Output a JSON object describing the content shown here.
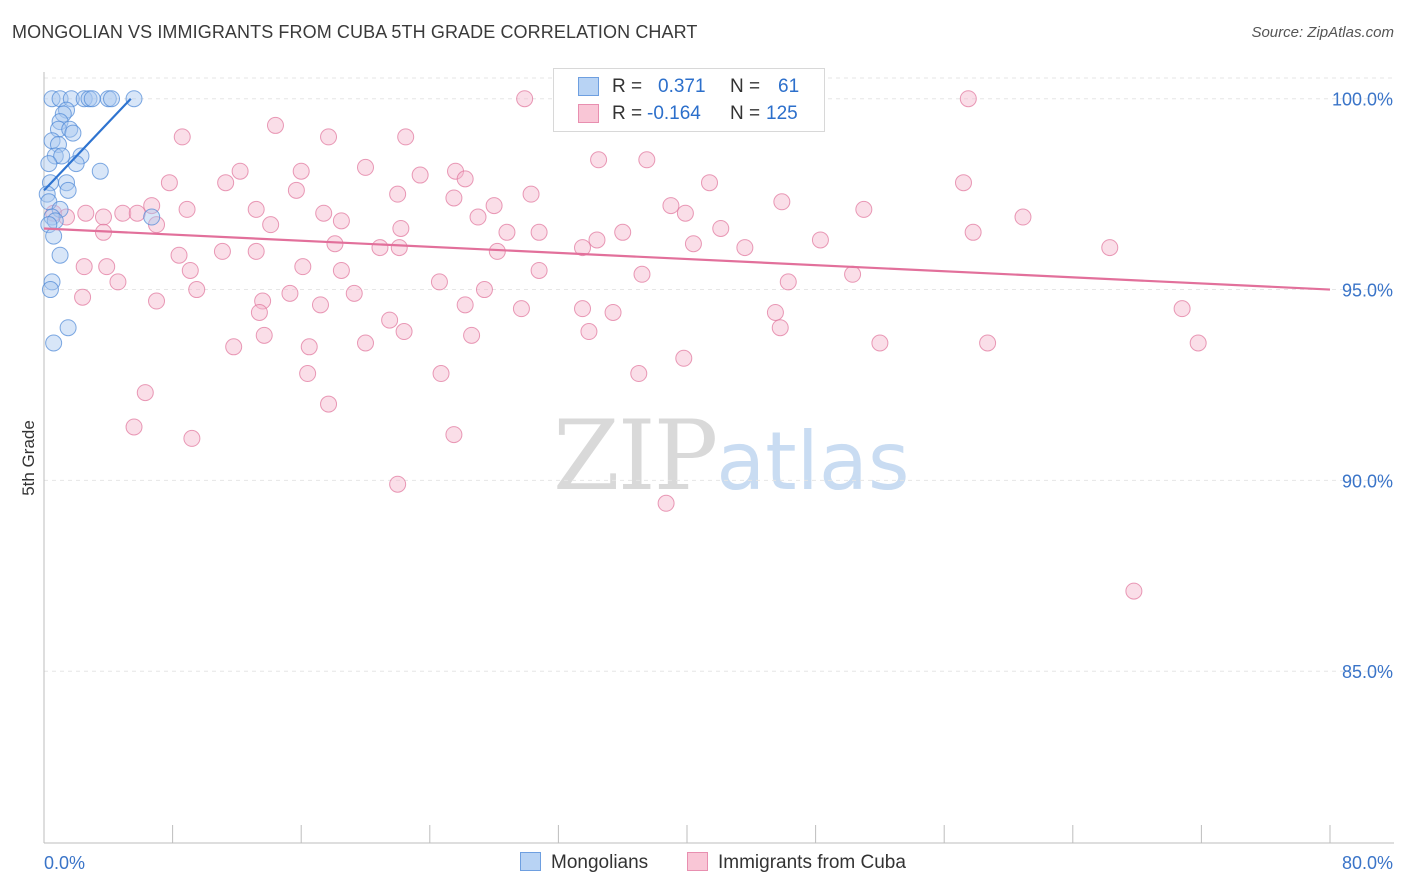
{
  "header": {
    "title": "MONGOLIAN VS IMMIGRANTS FROM CUBA 5TH GRADE CORRELATION CHART",
    "source": "Source: ZipAtlas.com"
  },
  "watermark": {
    "zip": "ZIP",
    "atlas": "atlas"
  },
  "legend": {
    "r_label": "R =",
    "n_label": "N =",
    "series1": {
      "r": "0.371",
      "n": "61"
    },
    "series2": {
      "r": "-0.164",
      "n": "125"
    }
  },
  "bottom_legend": {
    "series1": "Mongolians",
    "series2": "Immigrants from Cuba"
  },
  "colors": {
    "blue": "#4a86d6",
    "blue_fill": "#a9c8f0",
    "pink": "#e0729a",
    "pink_fill": "#f5b6cb",
    "axis_text": "#3a74c8",
    "grid": "#e6e6e6"
  },
  "chart_data": {
    "type": "scatter",
    "title": "MONGOLIAN VS IMMIGRANTS FROM CUBA 5TH GRADE CORRELATION CHART",
    "xlabel": "",
    "ylabel": "5th Grade",
    "xlim": [
      0,
      80
    ],
    "ylim": [
      80.5,
      100.7
    ],
    "x_tick_labels": [
      "0.0%",
      "80.0%"
    ],
    "y_ticks": [
      85,
      90,
      95,
      100
    ],
    "y_tick_labels": [
      "85.0%",
      "90.0%",
      "95.0%",
      "100.0%"
    ],
    "legend_position": "top-center",
    "series": [
      {
        "name": "Mongolians",
        "r": 0.371,
        "n": 61,
        "trend": [
          [
            0,
            97.6
          ],
          [
            5.4,
            100.0
          ]
        ],
        "points": [
          [
            0.5,
            100
          ],
          [
            1.0,
            100
          ],
          [
            1.7,
            100
          ],
          [
            2.5,
            100
          ],
          [
            2.8,
            100
          ],
          [
            3.0,
            100
          ],
          [
            4.0,
            100
          ],
          [
            4.2,
            100
          ],
          [
            5.6,
            100
          ],
          [
            1.4,
            99.7
          ],
          [
            1.2,
            99.6
          ],
          [
            1.0,
            99.4
          ],
          [
            0.9,
            99.2
          ],
          [
            1.6,
            99.2
          ],
          [
            1.8,
            99.1
          ],
          [
            0.5,
            98.9
          ],
          [
            0.9,
            98.8
          ],
          [
            0.7,
            98.5
          ],
          [
            1.1,
            98.5
          ],
          [
            2.3,
            98.5
          ],
          [
            0.3,
            98.3
          ],
          [
            2.0,
            98.3
          ],
          [
            3.5,
            98.1
          ],
          [
            0.4,
            97.8
          ],
          [
            1.4,
            97.8
          ],
          [
            1.5,
            97.6
          ],
          [
            0.2,
            97.5
          ],
          [
            0.3,
            97.3
          ],
          [
            1.0,
            97.1
          ],
          [
            0.5,
            96.9
          ],
          [
            0.7,
            96.8
          ],
          [
            0.3,
            96.7
          ],
          [
            6.7,
            96.9
          ],
          [
            0.6,
            96.4
          ],
          [
            1.0,
            95.9
          ],
          [
            0.5,
            95.2
          ],
          [
            0.4,
            95.0
          ],
          [
            1.5,
            94.0
          ],
          [
            0.6,
            93.6
          ]
        ]
      },
      {
        "name": "Immigrants from Cuba",
        "r": -0.164,
        "n": 125,
        "trend": [
          [
            0,
            96.6
          ],
          [
            80,
            95.0
          ]
        ],
        "points": [
          [
            29.9,
            100
          ],
          [
            57.5,
            100
          ],
          [
            14.4,
            99.3
          ],
          [
            8.6,
            99.0
          ],
          [
            17.7,
            99.0
          ],
          [
            22.5,
            99.0
          ],
          [
            12.2,
            98.1
          ],
          [
            16.0,
            98.1
          ],
          [
            25.6,
            98.1
          ],
          [
            34.5,
            98.4
          ],
          [
            20.0,
            98.2
          ],
          [
            23.4,
            98.0
          ],
          [
            26.2,
            97.9
          ],
          [
            7.8,
            97.8
          ],
          [
            11.3,
            97.8
          ],
          [
            37.5,
            98.4
          ],
          [
            41.4,
            97.8
          ],
          [
            57.2,
            97.8
          ],
          [
            15.7,
            97.6
          ],
          [
            22.0,
            97.5
          ],
          [
            25.5,
            97.4
          ],
          [
            28.0,
            97.2
          ],
          [
            30.3,
            97.5
          ],
          [
            39.0,
            97.2
          ],
          [
            45.9,
            97.3
          ],
          [
            51.0,
            97.1
          ],
          [
            13.2,
            97.1
          ],
          [
            17.4,
            97.0
          ],
          [
            14.1,
            96.7
          ],
          [
            22.2,
            96.6
          ],
          [
            3.7,
            96.9
          ],
          [
            4.9,
            97.0
          ],
          [
            5.8,
            97.0
          ],
          [
            6.7,
            97.2
          ],
          [
            7.0,
            96.7
          ],
          [
            8.9,
            97.1
          ],
          [
            0.6,
            97.0
          ],
          [
            1.4,
            96.9
          ],
          [
            2.6,
            97.0
          ],
          [
            3.7,
            96.5
          ],
          [
            28.8,
            96.5
          ],
          [
            30.8,
            96.5
          ],
          [
            34.4,
            96.3
          ],
          [
            36.0,
            96.5
          ],
          [
            42.1,
            96.6
          ],
          [
            43.6,
            96.1
          ],
          [
            48.3,
            96.3
          ],
          [
            18.5,
            96.8
          ],
          [
            27.0,
            96.9
          ],
          [
            39.9,
            97.0
          ],
          [
            8.4,
            95.9
          ],
          [
            11.1,
            96.0
          ],
          [
            13.2,
            96.0
          ],
          [
            18.1,
            96.2
          ],
          [
            20.9,
            96.1
          ],
          [
            22.1,
            96.1
          ],
          [
            28.2,
            96.0
          ],
          [
            33.5,
            96.1
          ],
          [
            40.4,
            96.2
          ],
          [
            2.5,
            95.6
          ],
          [
            3.9,
            95.6
          ],
          [
            4.6,
            95.2
          ],
          [
            9.1,
            95.5
          ],
          [
            16.1,
            95.6
          ],
          [
            18.5,
            95.5
          ],
          [
            24.6,
            95.2
          ],
          [
            27.4,
            95.0
          ],
          [
            30.8,
            95.5
          ],
          [
            37.2,
            95.4
          ],
          [
            46.3,
            95.2
          ],
          [
            50.3,
            95.4
          ],
          [
            2.4,
            94.8
          ],
          [
            7.0,
            94.7
          ],
          [
            9.5,
            95.0
          ],
          [
            13.6,
            94.7
          ],
          [
            15.3,
            94.9
          ],
          [
            17.2,
            94.6
          ],
          [
            19.3,
            94.9
          ],
          [
            13.4,
            94.4
          ],
          [
            26.2,
            94.6
          ],
          [
            29.7,
            94.5
          ],
          [
            33.5,
            94.5
          ],
          [
            35.4,
            94.4
          ],
          [
            45.5,
            94.4
          ],
          [
            45.8,
            94.0
          ],
          [
            21.5,
            94.2
          ],
          [
            22.4,
            93.9
          ],
          [
            11.8,
            93.5
          ],
          [
            13.7,
            93.8
          ],
          [
            16.5,
            93.5
          ],
          [
            20.0,
            93.6
          ],
          [
            26.6,
            93.8
          ],
          [
            52.0,
            93.6
          ],
          [
            58.7,
            93.6
          ],
          [
            71.8,
            93.6
          ],
          [
            70.8,
            94.5
          ],
          [
            33.9,
            93.9
          ],
          [
            39.8,
            93.2
          ],
          [
            16.4,
            92.8
          ],
          [
            24.7,
            92.8
          ],
          [
            37.0,
            92.8
          ],
          [
            6.3,
            92.3
          ],
          [
            17.7,
            92.0
          ],
          [
            5.6,
            91.4
          ],
          [
            9.2,
            91.1
          ],
          [
            25.5,
            91.2
          ],
          [
            38.7,
            89.4
          ],
          [
            22.0,
            89.9
          ],
          [
            67.8,
            87.1
          ],
          [
            57.8,
            96.5
          ],
          [
            60.9,
            96.9
          ],
          [
            66.3,
            96.1
          ]
        ]
      }
    ]
  }
}
